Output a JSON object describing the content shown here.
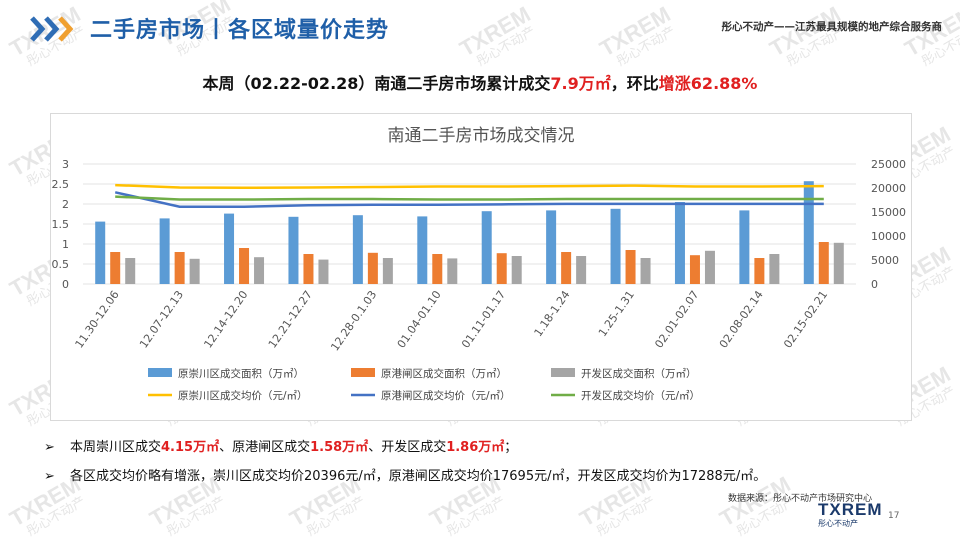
{
  "header": {
    "title": "二手房市场丨各区域量价走势",
    "slogan": "彤心不动产——江苏最具规模的地产综合服务商"
  },
  "subtitle": {
    "prefix": "本周（02.22-02.28）南通二手房市场累计成交",
    "volume": "7.9万㎡",
    "middle": "，环比",
    "change": "增涨62.88%"
  },
  "chart_data": {
    "type": "bar",
    "title": "南通二手房市场成交情况",
    "categories": [
      "11.30-12.06",
      "12.07-12.13",
      "12.14-12.20",
      "12.21-12.27",
      "12.28-0.1.03",
      "01.04-01.10",
      "01.11-01.17",
      "1.18-1.24",
      "1.25-1.31",
      "02.01-02.07",
      "02.08-02.14",
      "02.15-02.21"
    ],
    "ylim_left": [
      0,
      3
    ],
    "yticks_left": [
      "0",
      "0.5",
      "1",
      "1.5",
      "2",
      "2.5",
      "3"
    ],
    "ylim_right": [
      0,
      25000
    ],
    "yticks_right": [
      "0",
      "5000",
      "10000",
      "15000",
      "20000",
      "25000"
    ],
    "grid": true,
    "legend_position": "bottom",
    "bar_series": [
      {
        "name": "原崇川区成交面积（万㎡）",
        "color": "#5b9bd5",
        "values": [
          1.56,
          1.64,
          1.76,
          1.68,
          1.72,
          1.69,
          1.82,
          1.84,
          1.88,
          2.05,
          1.84,
          2.57
        ]
      },
      {
        "name": "原港闸区成交面积（万㎡）",
        "color": "#ed7d31",
        "values": [
          0.8,
          0.8,
          0.9,
          0.75,
          0.78,
          0.75,
          0.77,
          0.8,
          0.85,
          0.72,
          0.65,
          1.05
        ]
      },
      {
        "name": "开发区成交面积（万㎡）",
        "color": "#a5a5a5",
        "values": [
          0.65,
          0.63,
          0.67,
          0.61,
          0.65,
          0.64,
          0.7,
          0.7,
          0.65,
          0.83,
          0.75,
          1.03
        ]
      }
    ],
    "line_series": [
      {
        "name": "原崇川区成交均价（元/㎡）",
        "color": "#ffc000",
        "values": [
          20600,
          20100,
          20050,
          20100,
          20200,
          20300,
          20300,
          20400,
          20500,
          20300,
          20300,
          20400
        ]
      },
      {
        "name": "原港闸区成交均价（元/㎡）",
        "color": "#4472c4",
        "values": [
          19100,
          16100,
          16100,
          16400,
          16500,
          16500,
          16600,
          16700,
          16700,
          16700,
          16700,
          16700
        ]
      },
      {
        "name": "开发区成交均价（元/㎡）",
        "color": "#70ad47",
        "values": [
          18200,
          17600,
          17600,
          17700,
          17700,
          17600,
          17600,
          17700,
          17700,
          17700,
          17700,
          17700
        ]
      }
    ]
  },
  "bullets": [
    {
      "arrow": "➢",
      "p1": "本周崇川区成交",
      "v1": "4.15万㎡",
      "p2": "、原港闸区成交",
      "v2": "1.58万㎡",
      "p3": "、开发区成交",
      "v3": "1.86万㎡",
      "p4": "；"
    },
    {
      "arrow": "➢",
      "text": "各区成交均价略有增涨，崇川区成交均价20396元/㎡，原港闸区成交均价17695元/㎡，开发区成交均价为17288元/㎡。"
    }
  ],
  "footer": {
    "source": "数据来源：彤心不动产市场研究中心",
    "logo_text": "TXREM",
    "logo_sub": "彤心不动产",
    "page": "17"
  },
  "watermark": {
    "logo": "TXREM",
    "sub": "彤心不动产"
  },
  "colors": {
    "brand_blue": "#1f5fa8",
    "accent_red": "#e02020",
    "chevron_blue": "#2f6db5",
    "chevron_orange": "#f0a030"
  }
}
